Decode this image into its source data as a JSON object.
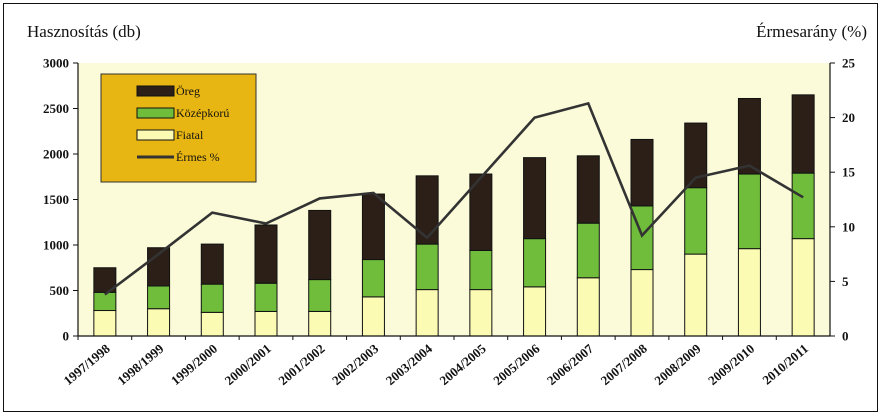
{
  "chart_data": {
    "type": "bar",
    "ylabel_left": "Hasznosítás (db)",
    "ylabel_right": "Érmesarány (%)",
    "categories": [
      "1997/1998",
      "1998/1999",
      "1999/2000",
      "2000/2001",
      "2001/2002",
      "2002/2003",
      "2003/2004",
      "2004/2005",
      "2005/2006",
      "2006/2007",
      "2007/2008",
      "2008/2009",
      "2009/2010",
      "2010/2011"
    ],
    "ylim_left": [
      0,
      3000
    ],
    "yticks_left": [
      "0",
      "500",
      "1000",
      "1500",
      "2000",
      "2500",
      "3000"
    ],
    "ylim_right": [
      0,
      25
    ],
    "yticks_right": [
      "0",
      "5",
      "10",
      "15",
      "20",
      "25"
    ],
    "stacked": true,
    "series": [
      {
        "name": "Fiatal",
        "type": "bar",
        "color": "#fbfbb4",
        "values": [
          280,
          300,
          260,
          270,
          270,
          430,
          510,
          510,
          540,
          640,
          730,
          900,
          960,
          1070
        ]
      },
      {
        "name": "Középkorú",
        "type": "bar",
        "color": "#6fbd3a",
        "values": [
          200,
          250,
          310,
          310,
          350,
          410,
          500,
          430,
          530,
          600,
          700,
          730,
          820,
          720
        ]
      },
      {
        "name": "Öreg",
        "type": "bar",
        "color": "#2b1f18",
        "values": [
          270,
          420,
          440,
          640,
          760,
          720,
          750,
          840,
          890,
          740,
          730,
          710,
          830,
          860
        ]
      },
      {
        "name": "Érmes %",
        "type": "line",
        "axis": "right",
        "color": "#333333",
        "values": [
          3.8,
          7.5,
          11.3,
          10.3,
          12.6,
          13.1,
          9.0,
          14.5,
          20.0,
          21.3,
          9.2,
          14.5,
          15.6,
          12.7
        ]
      }
    ],
    "grid": false,
    "legend": {
      "position": "top-left",
      "background": "#e8b612"
    }
  }
}
